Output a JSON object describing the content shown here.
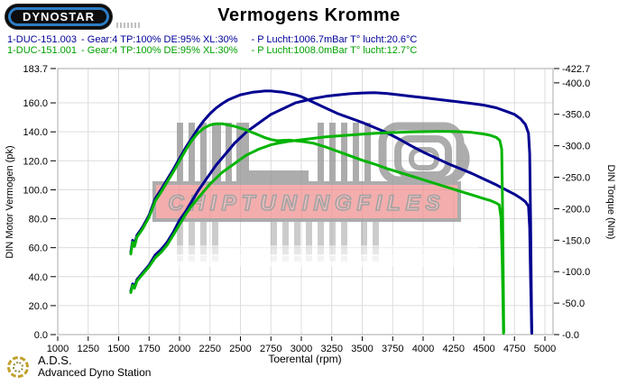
{
  "header": {
    "logo_text": "DYNOSTAR",
    "title": "Vermogens Kromme"
  },
  "legend": {
    "runs": [
      {
        "id": "1-DUC-151.003",
        "params": "- Gear:4 TP:100% DE:95% XL:30%",
        "ambient": "- P Lucht:1006.7mBar T° lucht:20.6°C",
        "color": "#000099"
      },
      {
        "id": "1-DUC-151.001",
        "params": "- Gear:4 TP:100% DE:95% XL:30%",
        "ambient": "- P Lucht:1008.0mBar T° lucht:12.7°C",
        "color": "#00a000"
      }
    ]
  },
  "watermark": {
    "text": "CHIPTUNINGFILES",
    "band_color": "#ef8d8d",
    "bar_color": "#9a9a9a"
  },
  "footer": {
    "abbr": "A.D.S.",
    "name": "Advanced Dyno Station"
  },
  "chart_data": {
    "type": "line",
    "title": "Vermogens Kromme",
    "xlabel": "Toerental (rpm)",
    "ylabel_left": "DIN Motor Vermogen (pk)",
    "ylabel_right": "DIN Torque (Nm)",
    "grid": true,
    "x": {
      "min": 1000,
      "max": 5000,
      "ticks": [
        1000,
        1250,
        1500,
        1750,
        2000,
        2250,
        2500,
        2750,
        3000,
        3250,
        3500,
        3750,
        4000,
        4250,
        4500,
        4750,
        5000
      ]
    },
    "y_left": {
      "min": 0,
      "max": 183.7,
      "tick_labels": [
        "183.7",
        "160.0",
        "140.0",
        "120.0",
        "100.0",
        "80.0",
        "60.0",
        "40.0",
        "20.0",
        "0.0"
      ],
      "tick_values": [
        183.7,
        160,
        140,
        120,
        100,
        80,
        60,
        40,
        20,
        0
      ]
    },
    "y_right": {
      "min": 0,
      "max": 422.7,
      "tick_labels": [
        "-422.7",
        "-400.0",
        "-350.0",
        "-300.0",
        "-250.0",
        "-200.0",
        "-150.0",
        "-100.0",
        "-50.0",
        "-0.0"
      ],
      "tick_values": [
        422.7,
        400,
        350,
        300,
        250,
        200,
        150,
        100,
        50,
        0
      ]
    },
    "series": [
      {
        "name": "1-DUC-151.003 vermogen (pk)",
        "color": "#000090",
        "axis": "power",
        "points": [
          [
            1600,
            30
          ],
          [
            1615,
            35
          ],
          [
            1630,
            33
          ],
          [
            1650,
            38
          ],
          [
            1680,
            41
          ],
          [
            1700,
            43
          ],
          [
            1750,
            48
          ],
          [
            1800,
            55
          ],
          [
            1850,
            59
          ],
          [
            1900,
            64
          ],
          [
            1950,
            71
          ],
          [
            2000,
            79
          ],
          [
            2050,
            85
          ],
          [
            2100,
            92
          ],
          [
            2150,
            99
          ],
          [
            2200,
            105
          ],
          [
            2250,
            111
          ],
          [
            2300,
            117
          ],
          [
            2350,
            122
          ],
          [
            2400,
            127
          ],
          [
            2450,
            132
          ],
          [
            2500,
            136
          ],
          [
            2550,
            140
          ],
          [
            2600,
            143
          ],
          [
            2650,
            146
          ],
          [
            2700,
            149
          ],
          [
            2750,
            152
          ],
          [
            2800,
            154
          ],
          [
            2850,
            156
          ],
          [
            2900,
            158
          ],
          [
            2950,
            160
          ],
          [
            3000,
            161
          ],
          [
            3100,
            163
          ],
          [
            3200,
            164.5
          ],
          [
            3300,
            165.5
          ],
          [
            3400,
            166.3
          ],
          [
            3500,
            166.8
          ],
          [
            3600,
            167
          ],
          [
            3700,
            166.5
          ],
          [
            3800,
            165.6
          ],
          [
            3900,
            164.6
          ],
          [
            4000,
            163.6
          ],
          [
            4100,
            162.6
          ],
          [
            4200,
            161.6
          ],
          [
            4300,
            160.6
          ],
          [
            4400,
            159.6
          ],
          [
            4500,
            158.4
          ],
          [
            4600,
            156.6
          ],
          [
            4700,
            153.6
          ],
          [
            4750,
            152
          ],
          [
            4800,
            149
          ],
          [
            4840,
            145
          ],
          [
            4865,
            139
          ],
          [
            4875,
            125
          ],
          [
            4882,
            80
          ],
          [
            4888,
            30
          ],
          [
            4892,
            2
          ]
        ]
      },
      {
        "name": "1-DUC-151.003 koppel (Nm)",
        "color": "#000090",
        "axis": "torque",
        "points": [
          [
            1600,
            131
          ],
          [
            1615,
            150
          ],
          [
            1630,
            143
          ],
          [
            1650,
            158
          ],
          [
            1680,
            166
          ],
          [
            1700,
            172
          ],
          [
            1750,
            190
          ],
          [
            1800,
            216
          ],
          [
            1850,
            231
          ],
          [
            1900,
            247
          ],
          [
            1950,
            263
          ],
          [
            2000,
            280
          ],
          [
            2050,
            297
          ],
          [
            2100,
            312
          ],
          [
            2150,
            327
          ],
          [
            2200,
            340
          ],
          [
            2250,
            351
          ],
          [
            2300,
            360
          ],
          [
            2350,
            367
          ],
          [
            2400,
            373
          ],
          [
            2450,
            377
          ],
          [
            2500,
            381
          ],
          [
            2550,
            383
          ],
          [
            2600,
            385
          ],
          [
            2650,
            386
          ],
          [
            2700,
            387
          ],
          [
            2750,
            387
          ],
          [
            2800,
            386
          ],
          [
            2850,
            385
          ],
          [
            2900,
            383
          ],
          [
            2950,
            381
          ],
          [
            3000,
            378
          ],
          [
            3100,
            369
          ],
          [
            3200,
            360
          ],
          [
            3300,
            351
          ],
          [
            3400,
            344
          ],
          [
            3500,
            337
          ],
          [
            3600,
            329
          ],
          [
            3700,
            321
          ],
          [
            3800,
            311
          ],
          [
            3900,
            300
          ],
          [
            4000,
            290
          ],
          [
            4100,
            281
          ],
          [
            4200,
            272
          ],
          [
            4300,
            264
          ],
          [
            4400,
            256
          ],
          [
            4500,
            247
          ],
          [
            4600,
            238
          ],
          [
            4700,
            228
          ],
          [
            4750,
            223
          ],
          [
            4800,
            217
          ],
          [
            4840,
            211
          ],
          [
            4865,
            204
          ],
          [
            4875,
            170
          ],
          [
            4882,
            90
          ],
          [
            4888,
            35
          ],
          [
            4892,
            2
          ]
        ]
      },
      {
        "name": "1-DUC-151.001 vermogen (pk)",
        "color": "#00b400",
        "axis": "power",
        "points": [
          [
            1600,
            29
          ],
          [
            1615,
            34
          ],
          [
            1630,
            32
          ],
          [
            1650,
            37
          ],
          [
            1680,
            40
          ],
          [
            1700,
            42
          ],
          [
            1750,
            47
          ],
          [
            1800,
            53
          ],
          [
            1850,
            57
          ],
          [
            1900,
            62
          ],
          [
            1950,
            69
          ],
          [
            2000,
            76
          ],
          [
            2050,
            83
          ],
          [
            2100,
            89
          ],
          [
            2150,
            94
          ],
          [
            2200,
            99
          ],
          [
            2250,
            104
          ],
          [
            2300,
            108
          ],
          [
            2350,
            112
          ],
          [
            2400,
            115
          ],
          [
            2450,
            118
          ],
          [
            2500,
            121
          ],
          [
            2550,
            124
          ],
          [
            2600,
            126
          ],
          [
            2650,
            128
          ],
          [
            2700,
            129.5
          ],
          [
            2750,
            131
          ],
          [
            2800,
            132
          ],
          [
            2900,
            133.5
          ],
          [
            3000,
            134.5
          ],
          [
            3100,
            135.5
          ],
          [
            3200,
            136.5
          ],
          [
            3300,
            137.2
          ],
          [
            3400,
            137.8
          ],
          [
            3500,
            138.4
          ],
          [
            3600,
            138.9
          ],
          [
            3700,
            139.3
          ],
          [
            3800,
            139.6
          ],
          [
            3900,
            139.9
          ],
          [
            4000,
            140.1
          ],
          [
            4100,
            140.3
          ],
          [
            4200,
            140.3
          ],
          [
            4300,
            140.1
          ],
          [
            4400,
            139.6
          ],
          [
            4450,
            139
          ],
          [
            4500,
            138.5
          ],
          [
            4550,
            137.6
          ],
          [
            4600,
            136.2
          ],
          [
            4630,
            134
          ],
          [
            4645,
            128
          ],
          [
            4652,
            90
          ],
          [
            4658,
            40
          ],
          [
            4662,
            2
          ]
        ]
      },
      {
        "name": "1-DUC-151.001 koppel (Nm)",
        "color": "#00b400",
        "axis": "torque",
        "points": [
          [
            1600,
            128
          ],
          [
            1615,
            147
          ],
          [
            1630,
            140
          ],
          [
            1650,
            155
          ],
          [
            1680,
            163
          ],
          [
            1700,
            169
          ],
          [
            1750,
            187
          ],
          [
            1800,
            212
          ],
          [
            1850,
            227
          ],
          [
            1900,
            243
          ],
          [
            1950,
            259
          ],
          [
            2000,
            276
          ],
          [
            2050,
            293
          ],
          [
            2100,
            308
          ],
          [
            2150,
            320
          ],
          [
            2200,
            328
          ],
          [
            2250,
            333
          ],
          [
            2300,
            335
          ],
          [
            2350,
            335
          ],
          [
            2400,
            333
          ],
          [
            2450,
            331
          ],
          [
            2500,
            328
          ],
          [
            2550,
            325
          ],
          [
            2600,
            321
          ],
          [
            2650,
            317
          ],
          [
            2700,
            313
          ],
          [
            2750,
            310
          ],
          [
            2800,
            308
          ],
          [
            2900,
            309
          ],
          [
            3000,
            307
          ],
          [
            3100,
            304
          ],
          [
            3200,
            298
          ],
          [
            3300,
            291
          ],
          [
            3400,
            284
          ],
          [
            3500,
            277
          ],
          [
            3600,
            271
          ],
          [
            3700,
            264
          ],
          [
            3800,
            258
          ],
          [
            3900,
            252
          ],
          [
            4000,
            246
          ],
          [
            4100,
            240
          ],
          [
            4200,
            234
          ],
          [
            4300,
            228
          ],
          [
            4400,
            222
          ],
          [
            4500,
            216
          ],
          [
            4550,
            213
          ],
          [
            4600,
            209
          ],
          [
            4625,
            206
          ],
          [
            4640,
            185
          ],
          [
            4650,
            110
          ],
          [
            4656,
            45
          ],
          [
            4660,
            2
          ]
        ]
      }
    ]
  }
}
